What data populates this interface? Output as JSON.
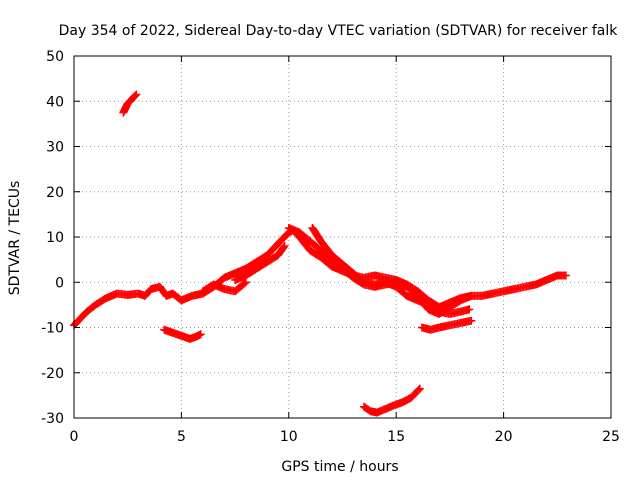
{
  "chart_data": {
    "type": "scatter",
    "title": "Day 354 of 2022, Sidereal Day-to-day VTEC variation (SDTVAR) for receiver falk",
    "xlabel": "GPS time / hours",
    "ylabel": "SDTVAR / TECUs",
    "xlim": [
      0,
      25
    ],
    "ylim": [
      -30,
      50
    ],
    "xticks": [
      0,
      5,
      10,
      15,
      20,
      25
    ],
    "yticks": [
      -30,
      -20,
      -10,
      0,
      10,
      20,
      30,
      40,
      50
    ],
    "grid": true,
    "grid_style": "dotted",
    "marker": "+",
    "color": "#ff0000",
    "series": [
      {
        "name": "main-trace",
        "points": [
          [
            0.0,
            -9.5
          ],
          [
            0.3,
            -8.0
          ],
          [
            0.6,
            -6.5
          ],
          [
            1.0,
            -5.0
          ],
          [
            1.5,
            -3.5
          ],
          [
            2.0,
            -2.5
          ],
          [
            2.5,
            -2.8
          ],
          [
            3.0,
            -2.5
          ],
          [
            3.3,
            -3.0
          ],
          [
            3.6,
            -1.5
          ],
          [
            4.0,
            -1.0
          ],
          [
            4.3,
            -3.0
          ],
          [
            4.6,
            -2.5
          ],
          [
            5.0,
            -4.0
          ],
          [
            5.5,
            -3.0
          ],
          [
            6.0,
            -2.5
          ],
          [
            6.5,
            -1.0
          ],
          [
            7.0,
            1.0
          ],
          [
            7.5,
            2.0
          ],
          [
            8.0,
            3.0
          ],
          [
            8.5,
            4.5
          ],
          [
            9.0,
            6.0
          ],
          [
            9.5,
            8.5
          ],
          [
            10.0,
            11.0
          ],
          [
            10.2,
            11.5
          ],
          [
            10.5,
            10.0
          ],
          [
            11.0,
            7.0
          ],
          [
            11.5,
            5.5
          ],
          [
            12.0,
            3.5
          ],
          [
            12.5,
            2.5
          ],
          [
            13.0,
            1.5
          ],
          [
            13.5,
            1.0
          ],
          [
            14.0,
            1.5
          ],
          [
            14.5,
            1.0
          ],
          [
            15.0,
            0.5
          ],
          [
            15.5,
            -0.5
          ],
          [
            16.0,
            -2.0
          ],
          [
            16.5,
            -4.0
          ],
          [
            17.0,
            -5.5
          ],
          [
            17.5,
            -4.5
          ],
          [
            18.0,
            -3.5
          ],
          [
            18.5,
            -3.0
          ],
          [
            19.0,
            -3.0
          ],
          [
            19.5,
            -2.5
          ],
          [
            20.0,
            -2.0
          ],
          [
            20.5,
            -1.5
          ],
          [
            21.0,
            -1.0
          ],
          [
            21.5,
            -0.5
          ],
          [
            22.0,
            0.5
          ],
          [
            22.5,
            1.5
          ],
          [
            22.9,
            1.5
          ]
        ]
      },
      {
        "name": "secondary-arc-a",
        "points": [
          [
            10.0,
            12.0
          ],
          [
            10.5,
            11.0
          ],
          [
            11.0,
            9.0
          ],
          [
            11.5,
            7.0
          ],
          [
            12.0,
            5.0
          ],
          [
            12.5,
            3.0
          ],
          [
            13.0,
            1.0
          ],
          [
            13.5,
            -0.5
          ],
          [
            14.0,
            -1.0
          ],
          [
            14.5,
            -0.5
          ],
          [
            15.0,
            0.0
          ],
          [
            15.5,
            -1.0
          ],
          [
            16.0,
            -3.0
          ],
          [
            16.5,
            -6.0
          ],
          [
            17.0,
            -7.0
          ],
          [
            17.5,
            -5.5
          ],
          [
            18.0,
            -4.0
          ],
          [
            18.5,
            -3.0
          ]
        ]
      },
      {
        "name": "secondary-arc-b",
        "points": [
          [
            11.1,
            12.0
          ],
          [
            11.5,
            9.0
          ],
          [
            12.0,
            6.0
          ],
          [
            12.5,
            4.0
          ],
          [
            13.0,
            2.0
          ],
          [
            13.5,
            0.0
          ],
          [
            14.0,
            -0.5
          ],
          [
            14.5,
            0.0
          ],
          [
            15.0,
            -1.0
          ],
          [
            15.5,
            -3.0
          ],
          [
            16.0,
            -4.0
          ],
          [
            16.5,
            -5.0
          ],
          [
            17.0,
            -6.5
          ],
          [
            17.5,
            -7.0
          ],
          [
            18.0,
            -6.5
          ],
          [
            18.4,
            -6.0
          ]
        ]
      },
      {
        "name": "secondary-arc-c",
        "points": [
          [
            7.5,
            0.5
          ],
          [
            8.0,
            1.5
          ],
          [
            8.5,
            3.0
          ],
          [
            9.0,
            4.5
          ],
          [
            9.5,
            6.0
          ],
          [
            9.8,
            8.0
          ]
        ]
      },
      {
        "name": "secondary-arc-d",
        "points": [
          [
            6.0,
            -2.0
          ],
          [
            6.5,
            -0.5
          ],
          [
            7.0,
            -1.5
          ],
          [
            7.5,
            -2.0
          ],
          [
            8.0,
            0.0
          ]
        ]
      },
      {
        "name": "dip-segment",
        "points": [
          [
            16.2,
            -10.0
          ],
          [
            16.6,
            -10.5
          ],
          [
            17.0,
            -10.0
          ],
          [
            17.5,
            -9.5
          ],
          [
            18.0,
            -9.0
          ],
          [
            18.5,
            -8.5
          ]
        ]
      },
      {
        "name": "upper-isolated-segment",
        "points": [
          [
            2.3,
            37.5
          ],
          [
            2.4,
            38.5
          ],
          [
            2.5,
            39.5
          ],
          [
            2.6,
            40.0
          ],
          [
            2.7,
            40.5
          ],
          [
            2.8,
            41.0
          ],
          [
            2.9,
            41.5
          ]
        ]
      },
      {
        "name": "mid-isolated-segment",
        "points": [
          [
            4.2,
            -10.5
          ],
          [
            4.5,
            -11.0
          ],
          [
            4.8,
            -11.5
          ],
          [
            5.1,
            -12.0
          ],
          [
            5.4,
            -12.5
          ],
          [
            5.7,
            -12.0
          ],
          [
            5.9,
            -11.5
          ]
        ]
      },
      {
        "name": "lower-isolated-segment",
        "points": [
          [
            13.5,
            -27.5
          ],
          [
            13.8,
            -28.5
          ],
          [
            14.1,
            -28.8
          ],
          [
            14.5,
            -28.0
          ],
          [
            14.9,
            -27.2
          ],
          [
            15.3,
            -26.5
          ],
          [
            15.7,
            -25.5
          ],
          [
            16.1,
            -23.5
          ]
        ]
      }
    ]
  }
}
